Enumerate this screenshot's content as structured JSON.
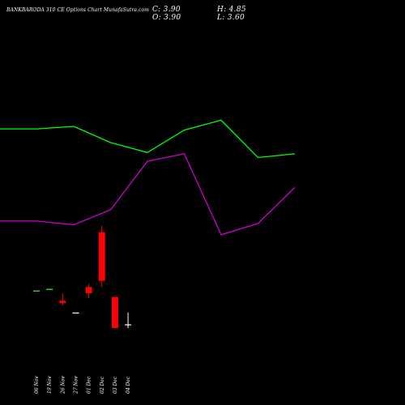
{
  "header": {
    "title": "BANKBARODA 310  CE Options  Chart MunafaSutra.com",
    "close_label": "C: 3.90",
    "open_label": "O: 3.90",
    "high_label": "H: 4.85",
    "low_label": "L: 3.60"
  },
  "colors": {
    "background": "#000000",
    "upper_line": "#00ff00",
    "lower_line": "#cc00cc",
    "bull_candle": "#33ff33",
    "bear_candle": "#ff0000",
    "flat_candle": "#ffffff",
    "text": "#ffffff"
  },
  "chart_data": {
    "type": "candlestick",
    "categories": [
      "06 Nov",
      "19 Nov",
      "26 Nov",
      "27 Nov",
      "01 Dec",
      "02 Dec",
      "03 Dec",
      "04 Dec"
    ],
    "candles": [
      {
        "date": "06 Nov",
        "open": 6.62,
        "high": 6.62,
        "low": 6.62,
        "close": 6.62
      },
      {
        "date": "19 Nov",
        "open": 6.75,
        "high": 6.75,
        "low": 6.75,
        "close": 6.75
      },
      {
        "date": "26 Nov",
        "open": 5.8,
        "high": 6.35,
        "low": 5.4,
        "close": 5.6
      },
      {
        "date": "27 Nov",
        "open": 4.85,
        "high": 4.85,
        "low": 4.85,
        "close": 4.85
      },
      {
        "date": "01 Dec",
        "open": 6.9,
        "high": 7.15,
        "low": 6.0,
        "close": 6.4
      },
      {
        "date": "02 Dec",
        "open": 11.3,
        "high": 11.8,
        "low": 6.9,
        "close": 7.4
      },
      {
        "date": "03 Dec",
        "open": 6.1,
        "high": 6.1,
        "low": 3.6,
        "close": 3.6
      },
      {
        "date": "04 Dec",
        "open": 3.9,
        "high": 4.85,
        "low": 3.6,
        "close": 3.9
      }
    ],
    "upper_band": [
      19.6,
      19.6,
      19.8,
      18.5,
      17.7,
      19.5,
      20.3,
      17.3,
      17.6
    ],
    "lower_band": [
      12.2,
      12.2,
      11.9,
      13.1,
      17.0,
      17.6,
      11.1,
      12.0,
      14.9
    ],
    "line_points": 9,
    "ylim": [
      1,
      28
    ]
  }
}
